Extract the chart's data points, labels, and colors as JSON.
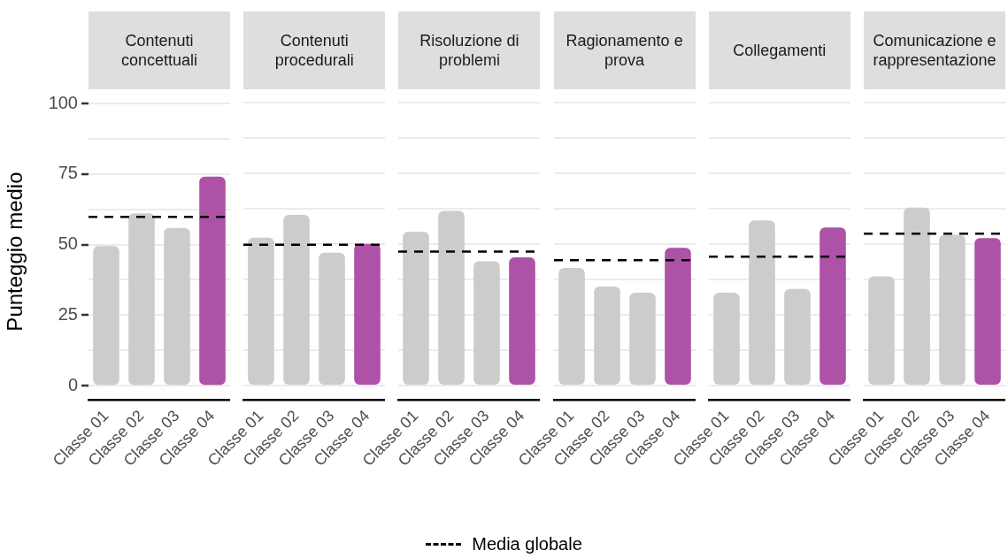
{
  "chart_data": [
    {
      "type": "bar",
      "title": "Contenuti concettuali",
      "ylabel": "Punteggio medio",
      "categories": [
        "Classe 01",
        "Classe 02",
        "Classe 03",
        "Classe 04"
      ],
      "values": [
        49.5,
        61.1,
        55.9,
        74.1
      ],
      "colors": [
        "#cccccc",
        "#cccccc",
        "#cccccc",
        "#ad52a6"
      ],
      "ylim": [
        -5,
        100
      ],
      "yticks": [
        0,
        {
          "value": 12.5,
          "label": null
        },
        25,
        {
          "value": 37.5,
          "label": null
        },
        50,
        {
          "value": 62.5,
          "label": null
        },
        75,
        {
          "value": 87.5,
          "label": null
        },
        100
      ],
      "grid": "y",
      "legend": "bottom",
      "ref_lines": [
        {
          "axis": "y",
          "value": 59.8,
          "label": "Media globale",
          "color": "#000000",
          "line_style": "dashed"
        }
      ]
    },
    {
      "type": "bar",
      "title": "Contenuti procedurali",
      "categories": [
        "Classe 01",
        "Classe 02",
        "Classe 03",
        "Classe 04"
      ],
      "values": [
        52.3,
        60.3,
        47.0,
        50.1
      ],
      "colors": [
        "#cccccc",
        "#cccccc",
        "#cccccc",
        "#ad52a6"
      ],
      "ylim": [
        -5,
        100
      ],
      "yticks": [
        0,
        {
          "value": 12.5,
          "label": null
        },
        25,
        {
          "value": 37.5,
          "label": null
        },
        50,
        {
          "value": 62.5,
          "label": null
        },
        75,
        {
          "value": 87.5,
          "label": null
        },
        100
      ],
      "grid": "y",
      "tick_labels": "x",
      "ref_lines": [
        {
          "axis": "y",
          "value": 49.8,
          "color": "#000000",
          "line_style": "dashed"
        }
      ]
    },
    {
      "type": "bar",
      "title": "Risoluzione di problemi",
      "categories": [
        "Classe 01",
        "Classe 02",
        "Classe 03",
        "Classe 04"
      ],
      "values": [
        54.4,
        61.7,
        43.9,
        45.3
      ],
      "colors": [
        "#cccccc",
        "#cccccc",
        "#cccccc",
        "#ad52a6"
      ],
      "ylim": [
        -5,
        100
      ],
      "yticks": [
        0,
        {
          "value": 12.5,
          "label": null
        },
        25,
        {
          "value": 37.5,
          "label": null
        },
        50,
        {
          "value": 62.5,
          "label": null
        },
        75,
        {
          "value": 87.5,
          "label": null
        },
        100
      ],
      "grid": "y",
      "tick_labels": "x",
      "ref_lines": [
        {
          "axis": "y",
          "value": 47.4,
          "color": "#000000",
          "line_style": "dashed"
        }
      ]
    },
    {
      "type": "bar",
      "title": "Ragionamento e prova",
      "categories": [
        "Classe 01",
        "Classe 02",
        "Classe 03",
        "Classe 04"
      ],
      "values": [
        41.6,
        35.0,
        32.8,
        48.7
      ],
      "colors": [
        "#cccccc",
        "#cccccc",
        "#cccccc",
        "#ad52a6"
      ],
      "ylim": [
        -5,
        100
      ],
      "yticks": [
        0,
        {
          "value": 12.5,
          "label": null
        },
        25,
        {
          "value": 37.5,
          "label": null
        },
        50,
        {
          "value": 62.5,
          "label": null
        },
        75,
        {
          "value": 87.5,
          "label": null
        },
        100
      ],
      "grid": "y",
      "tick_labels": "x",
      "ref_lines": [
        {
          "axis": "y",
          "value": 44.3,
          "color": "#000000",
          "line_style": "dashed"
        }
      ]
    },
    {
      "type": "bar",
      "title": "Collegamenti",
      "categories": [
        "Classe 01",
        "Classe 02",
        "Classe 03",
        "Classe 04"
      ],
      "values": [
        32.8,
        58.4,
        34.2,
        55.9
      ],
      "colors": [
        "#cccccc",
        "#cccccc",
        "#cccccc",
        "#ad52a6"
      ],
      "ylim": [
        -5,
        100
      ],
      "yticks": [
        0,
        {
          "value": 12.5,
          "label": null
        },
        25,
        {
          "value": 37.5,
          "label": null
        },
        50,
        {
          "value": 62.5,
          "label": null
        },
        75,
        {
          "value": 87.5,
          "label": null
        },
        100
      ],
      "grid": "y",
      "tick_labels": "x",
      "ref_lines": [
        {
          "axis": "y",
          "value": 45.6,
          "color": "#000000",
          "line_style": "dashed"
        }
      ]
    },
    {
      "type": "bar",
      "title": "Comunicazione e rappresentazione",
      "categories": [
        "Classe 01",
        "Classe 02",
        "Classe 03",
        "Classe 04"
      ],
      "values": [
        38.6,
        62.9,
        53.3,
        52.1
      ],
      "colors": [
        "#cccccc",
        "#cccccc",
        "#cccccc",
        "#ad52a6"
      ],
      "ylim": [
        -5,
        100
      ],
      "yticks": [
        0,
        {
          "value": 12.5,
          "label": null
        },
        25,
        {
          "value": 37.5,
          "label": null
        },
        50,
        {
          "value": 62.5,
          "label": null
        },
        75,
        {
          "value": 87.5,
          "label": null
        },
        100
      ],
      "grid": "y",
      "tick_labels": "x",
      "ref_lines": [
        {
          "axis": "y",
          "value": 53.7,
          "color": "#000000",
          "line_style": "dashed"
        }
      ]
    }
  ]
}
